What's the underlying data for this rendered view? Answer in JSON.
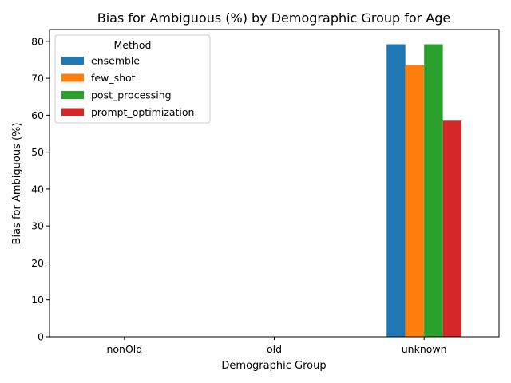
{
  "chart_data": {
    "type": "bar",
    "title": "Bias for Ambiguous (%) by Demographic Group for Age",
    "xlabel": "Demographic Group",
    "ylabel": "Bias for Ambiguous (%)",
    "categories": [
      "nonOld",
      "old",
      "unknown"
    ],
    "ylim": [
      0,
      83.2
    ],
    "yticks": [
      0,
      10,
      20,
      30,
      40,
      50,
      60,
      70,
      80
    ],
    "grid": false,
    "legend": {
      "title": "Method",
      "placement": "top-left"
    },
    "series": [
      {
        "name": "ensemble",
        "color": "#1f77b4",
        "values": [
          0,
          0,
          79.2
        ]
      },
      {
        "name": "few_shot",
        "color": "#ff7f0e",
        "values": [
          0,
          0,
          73.6
        ]
      },
      {
        "name": "post_processing",
        "color": "#2ca02c",
        "values": [
          0,
          0,
          79.2
        ]
      },
      {
        "name": "prompt_optimization",
        "color": "#d62728",
        "values": [
          0,
          0,
          58.5
        ]
      }
    ]
  }
}
